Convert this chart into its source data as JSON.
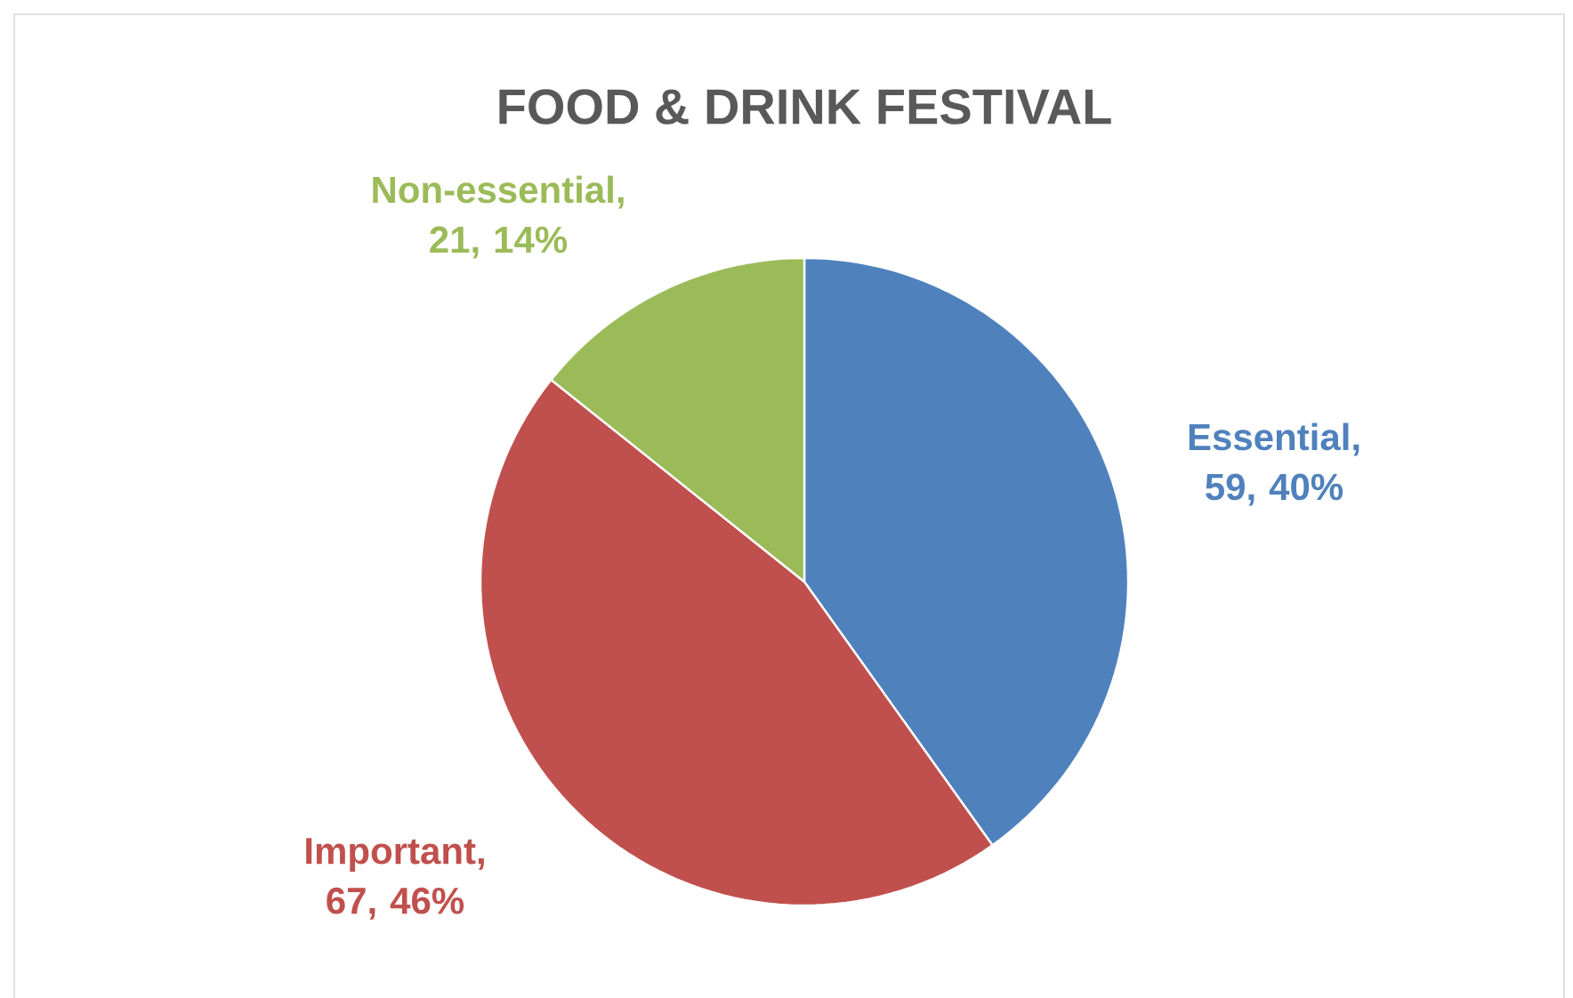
{
  "chart_data": {
    "type": "pie",
    "title": "FOOD & DRINK FESTIVAL",
    "categories": [
      "Essential",
      "Important",
      "Non-essential"
    ],
    "values": [
      59,
      67,
      21
    ],
    "colors": [
      "#4f81bd",
      "#c0504d",
      "#9bbb59"
    ],
    "value_labels": [
      ", 59, 40%",
      ", 67, 46%",
      ", 21, 14%"
    ]
  }
}
